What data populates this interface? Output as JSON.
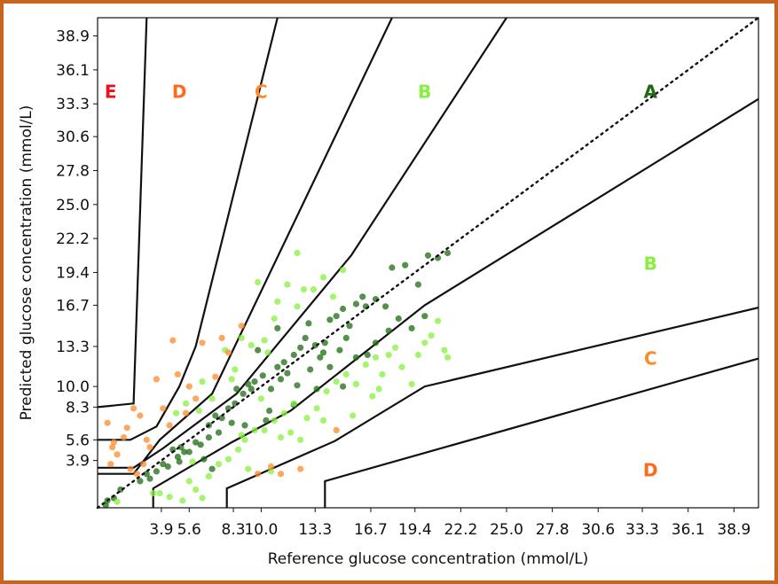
{
  "chart_data": {
    "type": "scatter",
    "title": "",
    "xlabel": "Reference glucose concentration (mmol/L)",
    "ylabel": "Predicted glucose concentration (mmol/L)",
    "xlim": [
      0,
      40.4
    ],
    "ylim": [
      0,
      40.4
    ],
    "xticks": [
      "3.9",
      "5.6",
      "8.3",
      "10.0",
      "13.3",
      "16.7",
      "19.4",
      "22.2",
      "25.0",
      "27.8",
      "30.6",
      "33.3",
      "36.1",
      "38.9"
    ],
    "xtick_values": [
      3.9,
      5.6,
      8.3,
      10.0,
      13.3,
      16.7,
      19.4,
      22.2,
      25.0,
      27.8,
      30.6,
      33.3,
      36.1,
      38.9
    ],
    "yticks": [
      "3.9",
      "5.6",
      "8.3",
      "10.0",
      "13.3",
      "16.7",
      "19.4",
      "22.2",
      "25.0",
      "27.8",
      "30.6",
      "33.3",
      "36.1",
      "38.9"
    ],
    "ytick_values": [
      3.9,
      5.6,
      8.3,
      10.0,
      13.3,
      16.7,
      19.4,
      22.2,
      25.0,
      27.8,
      30.6,
      33.3,
      36.1,
      38.9
    ],
    "grid": false,
    "zone_colors": {
      "A": "#1e6b12",
      "B": "#86f03c",
      "C": "#ff8a2a",
      "D": "#ff6a1a",
      "E": "#e8101c"
    },
    "zone_labels": [
      {
        "text": "E",
        "zone": "E",
        "x": 0.8,
        "y": 34.2
      },
      {
        "text": "D",
        "zone": "D",
        "x": 5.0,
        "y": 34.2
      },
      {
        "text": "C",
        "zone": "C",
        "x": 10.0,
        "y": 34.2
      },
      {
        "text": "B",
        "zone": "B",
        "x": 20.0,
        "y": 34.2
      },
      {
        "text": "A",
        "zone": "A",
        "x": 33.8,
        "y": 34.2
      },
      {
        "text": "B",
        "zone": "B",
        "x": 33.8,
        "y": 20.0
      },
      {
        "text": "C",
        "zone": "C",
        "x": 33.8,
        "y": 12.2
      },
      {
        "text": "D",
        "zone": "D",
        "x": 33.8,
        "y": 3.0
      }
    ],
    "zone_boundaries": [
      [
        [
          0,
          8.3
        ],
        [
          2.2,
          8.6
        ],
        [
          3.0,
          40.4
        ]
      ],
      [
        [
          0,
          5.6
        ],
        [
          2.0,
          5.6
        ],
        [
          3.6,
          6.7
        ],
        [
          5.0,
          10.0
        ],
        [
          6.0,
          13.3
        ],
        [
          11.0,
          40.4
        ]
      ],
      [
        [
          0,
          2.8
        ],
        [
          2.2,
          2.8
        ],
        [
          3.8,
          5.6
        ],
        [
          7.0,
          9.4
        ],
        [
          18.0,
          40.4
        ]
      ],
      [
        [
          0,
          3.3
        ],
        [
          2.2,
          3.3
        ],
        [
          4.0,
          4.9
        ],
        [
          8.5,
          9.4
        ],
        [
          15.5,
          20.8
        ],
        [
          25.0,
          40.4
        ]
      ],
      [
        [
          3.4,
          0
        ],
        [
          3.4,
          1.6
        ],
        [
          8.2,
          5.4
        ],
        [
          11.8,
          8.0
        ],
        [
          20.0,
          16.7
        ],
        [
          40.4,
          33.7
        ]
      ],
      [
        [
          7.9,
          0
        ],
        [
          7.9,
          1.6
        ],
        [
          14.5,
          5.5
        ],
        [
          20.0,
          10.0
        ],
        [
          40.4,
          16.5
        ]
      ],
      [
        [
          13.9,
          0
        ],
        [
          13.9,
          2.2
        ],
        [
          40.4,
          12.3
        ]
      ]
    ],
    "series": [
      {
        "zone": "A",
        "points": [
          [
            0.6,
            0.6
          ],
          [
            1.0,
            0.8
          ],
          [
            0.5,
            0.2
          ],
          [
            1.4,
            1.5
          ],
          [
            2.6,
            2.2
          ],
          [
            3.0,
            2.8
          ],
          [
            3.2,
            2.4
          ],
          [
            3.6,
            3.0
          ],
          [
            4.0,
            3.6
          ],
          [
            4.3,
            3.4
          ],
          [
            4.6,
            4.8
          ],
          [
            4.9,
            4.2
          ],
          [
            5.1,
            5.0
          ],
          [
            5.3,
            4.6
          ],
          [
            5.6,
            4.6
          ],
          [
            5.0,
            3.8
          ],
          [
            6.0,
            5.4
          ],
          [
            6.3,
            5.2
          ],
          [
            6.8,
            6.8
          ],
          [
            7.2,
            7.6
          ],
          [
            7.6,
            7.4
          ],
          [
            8.0,
            8.2
          ],
          [
            8.5,
            9.8
          ],
          [
            8.9,
            9.4
          ],
          [
            9.2,
            10.2
          ],
          [
            9.6,
            10.4
          ],
          [
            10.1,
            10.9
          ],
          [
            10.6,
            9.8
          ],
          [
            11.0,
            11.6
          ],
          [
            11.6,
            11.1
          ],
          [
            12.0,
            12.6
          ],
          [
            12.4,
            13.2
          ],
          [
            12.7,
            14.0
          ],
          [
            13.0,
            11.4
          ],
          [
            13.3,
            13.4
          ],
          [
            13.6,
            12.4
          ],
          [
            13.9,
            13.6
          ],
          [
            14.2,
            15.5
          ],
          [
            14.6,
            15.8
          ],
          [
            15.0,
            16.4
          ],
          [
            15.4,
            15.0
          ],
          [
            15.8,
            16.8
          ],
          [
            16.4,
            16.6
          ],
          [
            17.0,
            17.2
          ],
          [
            17.6,
            16.6
          ],
          [
            18.0,
            19.8
          ],
          [
            18.8,
            20.0
          ],
          [
            19.6,
            18.4
          ],
          [
            20.2,
            20.8
          ],
          [
            20.8,
            20.6
          ],
          [
            21.4,
            21.0
          ],
          [
            7.0,
            3.2
          ],
          [
            6.5,
            4.0
          ],
          [
            9.0,
            6.8
          ],
          [
            10.5,
            8.0
          ],
          [
            12.2,
            10.1
          ],
          [
            11.0,
            14.8
          ],
          [
            12.9,
            15.2
          ],
          [
            14.8,
            13.0
          ],
          [
            16.5,
            12.6
          ],
          [
            13.4,
            9.8
          ],
          [
            9.8,
            13.0
          ],
          [
            8.2,
            7.0
          ],
          [
            10.3,
            7.2
          ],
          [
            12.0,
            8.5
          ],
          [
            11.4,
            12.0
          ],
          [
            14.2,
            11.6
          ],
          [
            15.2,
            14.0
          ],
          [
            15.8,
            12.4
          ],
          [
            17.0,
            13.6
          ],
          [
            18.4,
            15.6
          ],
          [
            19.2,
            14.8
          ],
          [
            20.0,
            15.8
          ],
          [
            6.8,
            5.8
          ],
          [
            7.4,
            6.2
          ],
          [
            8.4,
            8.6
          ],
          [
            9.4,
            9.8
          ],
          [
            11.2,
            10.6
          ],
          [
            13.8,
            12.8
          ],
          [
            17.8,
            14.6
          ],
          [
            16.2,
            17.4
          ],
          [
            15.0,
            10.0
          ]
        ]
      },
      {
        "zone": "B",
        "points": [
          [
            1.2,
            0.5
          ],
          [
            3.4,
            1.2
          ],
          [
            4.4,
            0.9
          ],
          [
            5.2,
            0.6
          ],
          [
            6.0,
            1.5
          ],
          [
            5.8,
            3.8
          ],
          [
            6.8,
            2.6
          ],
          [
            7.4,
            3.6
          ],
          [
            8.0,
            4.0
          ],
          [
            8.6,
            4.8
          ],
          [
            9.0,
            5.6
          ],
          [
            9.6,
            6.4
          ],
          [
            10.2,
            6.4
          ],
          [
            10.8,
            7.2
          ],
          [
            11.4,
            7.8
          ],
          [
            12.0,
            8.6
          ],
          [
            12.8,
            7.4
          ],
          [
            13.4,
            8.2
          ],
          [
            14.0,
            9.6
          ],
          [
            14.6,
            10.4
          ],
          [
            15.2,
            11.0
          ],
          [
            15.8,
            10.2
          ],
          [
            16.4,
            11.8
          ],
          [
            17.0,
            12.4
          ],
          [
            17.4,
            11.0
          ],
          [
            17.8,
            12.6
          ],
          [
            18.2,
            13.2
          ],
          [
            18.6,
            11.6
          ],
          [
            19.2,
            10.2
          ],
          [
            19.6,
            12.6
          ],
          [
            20.0,
            13.6
          ],
          [
            20.4,
            14.2
          ],
          [
            20.8,
            15.4
          ],
          [
            21.2,
            13.0
          ],
          [
            21.4,
            12.4
          ],
          [
            4.8,
            7.8
          ],
          [
            5.4,
            8.6
          ],
          [
            6.4,
            10.4
          ],
          [
            7.8,
            13.0
          ],
          [
            8.4,
            11.4
          ],
          [
            8.8,
            14.0
          ],
          [
            9.4,
            13.4
          ],
          [
            10.2,
            13.8
          ],
          [
            10.8,
            15.6
          ],
          [
            11.0,
            17.0
          ],
          [
            11.6,
            18.4
          ],
          [
            12.2,
            16.6
          ],
          [
            12.6,
            18.0
          ],
          [
            13.2,
            18.0
          ],
          [
            13.8,
            19.0
          ],
          [
            14.4,
            17.4
          ],
          [
            15.0,
            19.6
          ],
          [
            8.2,
            10.6
          ],
          [
            9.8,
            18.6
          ],
          [
            10.4,
            12.8
          ],
          [
            7.0,
            9.0
          ],
          [
            6.2,
            8.0
          ],
          [
            8.8,
            6.0
          ],
          [
            10.0,
            9.0
          ],
          [
            11.8,
            6.2
          ],
          [
            12.4,
            5.6
          ],
          [
            13.8,
            7.2
          ],
          [
            15.6,
            7.6
          ],
          [
            16.8,
            9.2
          ],
          [
            17.2,
            9.8
          ],
          [
            12.2,
            21.0
          ],
          [
            6.4,
            0.8
          ],
          [
            3.8,
            1.2
          ],
          [
            5.6,
            2.2
          ],
          [
            9.2,
            3.2
          ],
          [
            10.6,
            3.0
          ],
          [
            11.2,
            5.8
          ]
        ]
      },
      {
        "zone": "C",
        "points": [
          [
            0.6,
            7.0
          ],
          [
            1.0,
            5.4
          ],
          [
            0.9,
            5.0
          ],
          [
            1.6,
            5.8
          ],
          [
            1.8,
            6.6
          ],
          [
            2.2,
            8.2
          ],
          [
            2.6,
            7.6
          ],
          [
            3.0,
            5.6
          ],
          [
            3.6,
            10.6
          ],
          [
            4.0,
            8.2
          ],
          [
            4.4,
            6.8
          ],
          [
            4.9,
            11.0
          ],
          [
            5.6,
            10.0
          ],
          [
            6.4,
            13.6
          ],
          [
            7.2,
            10.8
          ],
          [
            8.0,
            12.8
          ],
          [
            8.8,
            15.0
          ],
          [
            2.0,
            3.2
          ],
          [
            1.2,
            4.4
          ],
          [
            0.8,
            3.6
          ],
          [
            2.8,
            3.6
          ],
          [
            3.2,
            5.0
          ],
          [
            2.4,
            2.8
          ],
          [
            9.8,
            2.8
          ],
          [
            10.6,
            3.4
          ],
          [
            11.2,
            2.8
          ],
          [
            12.4,
            3.2
          ],
          [
            14.6,
            6.4
          ],
          [
            5.4,
            7.8
          ],
          [
            6.0,
            9.0
          ],
          [
            7.6,
            14.0
          ],
          [
            4.6,
            13.8
          ]
        ]
      }
    ],
    "reference_line": {
      "from": [
        0,
        0
      ],
      "to": [
        40.4,
        40.4
      ],
      "style": "dotted"
    }
  }
}
